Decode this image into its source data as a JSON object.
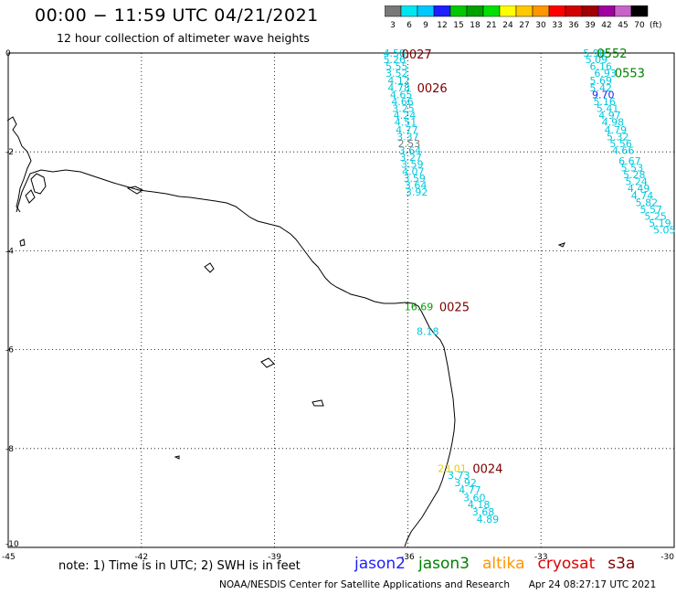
{
  "header": {
    "title": "00:00 − 11:59 UTC 04/21/2021",
    "subtitle": "12 hour collection of altimeter wave heights"
  },
  "color_scale": {
    "unit": "(ft)",
    "bins": [
      {
        "label": "3",
        "color": "#787878"
      },
      {
        "label": "6",
        "color": "#00e6f0"
      },
      {
        "label": "9",
        "color": "#00c8ff"
      },
      {
        "label": "12",
        "color": "#1e1eff"
      },
      {
        "label": "15",
        "color": "#00c800"
      },
      {
        "label": "18",
        "color": "#00a000"
      },
      {
        "label": "21",
        "color": "#00e000"
      },
      {
        "label": "24",
        "color": "#ffff00"
      },
      {
        "label": "27",
        "color": "#ffc800"
      },
      {
        "label": "30",
        "color": "#ff9600"
      },
      {
        "label": "33",
        "color": "#ff0000"
      },
      {
        "label": "36",
        "color": "#d20000"
      },
      {
        "label": "39",
        "color": "#a00000"
      },
      {
        "label": "42",
        "color": "#a000a0"
      },
      {
        "label": "45",
        "color": "#c864c8"
      },
      {
        "label": "70",
        "color": "#000000"
      }
    ]
  },
  "axes": {
    "lon_labels": [
      "-45",
      "-42",
      "-39",
      "-36",
      "-33",
      "-30"
    ],
    "lat_labels": [
      "0",
      "-2",
      "-4",
      "-6",
      "-8",
      "-10"
    ]
  },
  "passes": [
    {
      "id": "0027",
      "color": "#7a0000",
      "lon": -35.8,
      "lat": -0.02
    },
    {
      "id": "0026",
      "color": "#7a0000",
      "lon": -35.45,
      "lat": -0.7
    },
    {
      "id": "0025",
      "color": "#7a0000",
      "lon": -34.95,
      "lat": -5.13
    },
    {
      "id": "0024",
      "color": "#7a0000",
      "lon": -34.2,
      "lat": -8.4
    },
    {
      "id": "0552",
      "color": "#008000",
      "lon": -31.4,
      "lat": 0.0
    },
    {
      "id": "0553",
      "color": "#008000",
      "lon": -31.0,
      "lat": -0.4
    }
  ],
  "tracks": [
    {
      "name": "track-0027-0026",
      "values": [
        {
          "t": "4.58",
          "lon": -36.3,
          "lat": 0.0,
          "c": "#00c8dc"
        },
        {
          "t": "5.26",
          "lon": -36.3,
          "lat": -0.13,
          "c": "#00c8dc"
        },
        {
          "t": "5.55",
          "lon": -36.25,
          "lat": -0.27,
          "c": "#00c8dc"
        },
        {
          "t": "3.52",
          "lon": -36.25,
          "lat": -0.41,
          "c": "#00c8dc"
        },
        {
          "t": "4.12",
          "lon": -36.2,
          "lat": -0.55,
          "c": "#00c8dc"
        },
        {
          "t": "4.78",
          "lon": -36.2,
          "lat": -0.7,
          "c": "#00c8dc"
        },
        {
          "t": "4.65",
          "lon": -36.15,
          "lat": -0.84,
          "c": "#00c8dc"
        },
        {
          "t": "4.66",
          "lon": -36.12,
          "lat": -0.98,
          "c": "#00c8dc"
        },
        {
          "t": "3.25",
          "lon": -36.1,
          "lat": -1.12,
          "c": "#00c8dc"
        },
        {
          "t": "4.24",
          "lon": -36.07,
          "lat": -1.26,
          "c": "#00c8dc"
        },
        {
          "t": "4.51",
          "lon": -36.05,
          "lat": -1.4,
          "c": "#00c8dc"
        },
        {
          "t": "4.77",
          "lon": -36.02,
          "lat": -1.55,
          "c": "#00c8dc"
        },
        {
          "t": "3.37",
          "lon": -36.0,
          "lat": -1.69,
          "c": "#00c8dc"
        },
        {
          "t": "2.53",
          "lon": -35.97,
          "lat": -1.83,
          "c": "#787878"
        },
        {
          "t": "3.64",
          "lon": -35.95,
          "lat": -1.97,
          "c": "#00c8dc"
        },
        {
          "t": "3.27",
          "lon": -35.93,
          "lat": -2.11,
          "c": "#00c8dc"
        },
        {
          "t": "3.59",
          "lon": -35.9,
          "lat": -2.25,
          "c": "#00c8dc"
        },
        {
          "t": "4.07",
          "lon": -35.88,
          "lat": -2.39,
          "c": "#00c8dc"
        },
        {
          "t": "3.59",
          "lon": -35.85,
          "lat": -2.53,
          "c": "#00c8dc"
        },
        {
          "t": "3.64",
          "lon": -35.82,
          "lat": -2.67,
          "c": "#00c8dc"
        },
        {
          "t": "3.92",
          "lon": -35.8,
          "lat": -2.81,
          "c": "#00c8dc"
        }
      ]
    },
    {
      "name": "track-0025",
      "values": [
        {
          "t": "16.69",
          "lon": -35.75,
          "lat": -5.13,
          "c": "#00a000"
        },
        {
          "t": "8.18",
          "lon": -35.55,
          "lat": -5.63,
          "c": "#00c8dc"
        }
      ]
    },
    {
      "name": "track-0024",
      "values": [
        {
          "t": "23.01",
          "lon": -35.0,
          "lat": -8.4,
          "c": "#e6d200"
        },
        {
          "t": "3.73",
          "lon": -34.85,
          "lat": -8.54,
          "c": "#00c8dc"
        },
        {
          "t": "3.92",
          "lon": -34.7,
          "lat": -8.69,
          "c": "#00c8dc"
        },
        {
          "t": "4.77",
          "lon": -34.6,
          "lat": -8.84,
          "c": "#00c8dc"
        },
        {
          "t": "3.60",
          "lon": -34.5,
          "lat": -8.99,
          "c": "#00c8dc"
        },
        {
          "t": "4.18",
          "lon": -34.4,
          "lat": -9.13,
          "c": "#00c8dc"
        },
        {
          "t": "3.68",
          "lon": -34.3,
          "lat": -9.28,
          "c": "#00c8dc"
        },
        {
          "t": "4.89",
          "lon": -34.2,
          "lat": -9.43,
          "c": "#00c8dc"
        }
      ]
    },
    {
      "name": "track-0552-0553",
      "values": [
        {
          "t": "5.90",
          "lon": -31.8,
          "lat": 0.0,
          "c": "#00c8dc"
        },
        {
          "t": "5.09",
          "lon": -31.75,
          "lat": -0.13,
          "c": "#00c8dc"
        },
        {
          "t": "6.16",
          "lon": -31.65,
          "lat": -0.27,
          "c": "#00c8dc"
        },
        {
          "t": "6.93",
          "lon": -31.55,
          "lat": -0.41,
          "c": "#00c8dc"
        },
        {
          "t": "5.69",
          "lon": -31.65,
          "lat": -0.55,
          "c": "#00c8dc"
        },
        {
          "t": "5.42",
          "lon": -31.65,
          "lat": -0.7,
          "c": "#00c8dc"
        },
        {
          "t": "9.70",
          "lon": -31.6,
          "lat": -0.84,
          "c": "#1e1eff"
        },
        {
          "t": "5.16",
          "lon": -31.57,
          "lat": -0.98,
          "c": "#00c8dc"
        },
        {
          "t": "5.41",
          "lon": -31.5,
          "lat": -1.12,
          "c": "#00c8dc"
        },
        {
          "t": "4.97",
          "lon": -31.45,
          "lat": -1.26,
          "c": "#00c8dc"
        },
        {
          "t": "4.98",
          "lon": -31.38,
          "lat": -1.4,
          "c": "#00c8dc"
        },
        {
          "t": "4.79",
          "lon": -31.32,
          "lat": -1.55,
          "c": "#00c8dc"
        },
        {
          "t": "5.32",
          "lon": -31.27,
          "lat": -1.69,
          "c": "#00c8dc"
        },
        {
          "t": "5.56",
          "lon": -31.2,
          "lat": -1.83,
          "c": "#00c8dc"
        },
        {
          "t": "4.66",
          "lon": -31.15,
          "lat": -1.97,
          "c": "#00c8dc"
        },
        {
          "t": "6.67",
          "lon": -31.0,
          "lat": -2.18,
          "c": "#00c8dc"
        },
        {
          "t": "5.53",
          "lon": -30.95,
          "lat": -2.32,
          "c": "#00c8dc"
        },
        {
          "t": "5.28",
          "lon": -30.9,
          "lat": -2.46,
          "c": "#00c8dc"
        },
        {
          "t": "5.24",
          "lon": -30.85,
          "lat": -2.6,
          "c": "#00c8dc"
        },
        {
          "t": "4.49",
          "lon": -30.8,
          "lat": -2.74,
          "c": "#00c8dc"
        },
        {
          "t": "4.74",
          "lon": -30.72,
          "lat": -2.88,
          "c": "#00c8dc"
        },
        {
          "t": "5.82",
          "lon": -30.62,
          "lat": -3.02,
          "c": "#00c8dc"
        },
        {
          "t": "5.57",
          "lon": -30.52,
          "lat": -3.16,
          "c": "#00c8dc"
        },
        {
          "t": "5.25",
          "lon": -30.42,
          "lat": -3.3,
          "c": "#00c8dc"
        },
        {
          "t": "5.19",
          "lon": -30.32,
          "lat": -3.44,
          "c": "#00c8dc"
        },
        {
          "t": "5.05",
          "lon": -30.22,
          "lat": -3.58,
          "c": "#00c8dc"
        }
      ]
    }
  ],
  "note": "note:  1) Time is in UTC;  2) SWH is in feet",
  "legend": [
    {
      "label": "jason2",
      "color": "#1e1eff"
    },
    {
      "label": "jason3",
      "color": "#008000"
    },
    {
      "label": "altika",
      "color": "#ff9600"
    },
    {
      "label": "cryosat",
      "color": "#e00000"
    },
    {
      "label": "s3a",
      "color": "#800000"
    }
  ],
  "footer": {
    "credit": "NOAA/NESDIS Center for Satellite Applications and Research",
    "timestamp": "Apr 24 08:27:17 UTC 2021"
  }
}
